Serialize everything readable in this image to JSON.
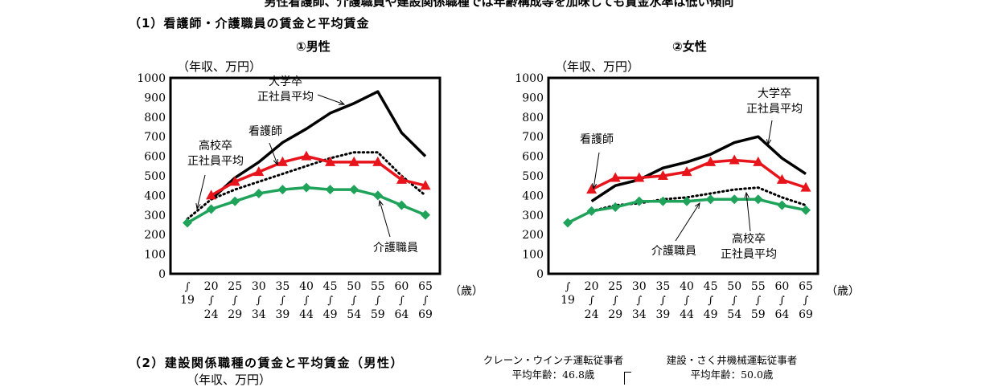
{
  "header": {
    "top_line": "男性看護師、介護職員や建設関係職種では年齢構成等を加味しても賃金水準は低い傾向",
    "section1_title": "（1）看護師・介護職員の賃金と平均賃金",
    "section2_title": "（2）建設関係職種の賃金と平均賃金（男性）",
    "section2_unit": "（年収、万円）"
  },
  "bottom_notes": {
    "crane_title": "クレーン・ウインチ運転従事者",
    "crane_age": "平均年齢：46.8歳",
    "drill_title": "建設・さく井機械運転従事者",
    "drill_age": "平均年齢：50.0歳"
  },
  "chart_data": [
    {
      "type": "line",
      "subtitle": "①男性",
      "ylabel": "（年収、万円）",
      "xunit": "（歳）",
      "ylim": [
        0,
        1000
      ],
      "yticks": [
        "1000",
        "900",
        "800",
        "700",
        "600",
        "500",
        "400",
        "300",
        "200",
        "100",
        "0"
      ],
      "categories": [
        "～19",
        "20～24",
        "25～29",
        "30～34",
        "35～39",
        "40～44",
        "45～49",
        "50～54",
        "55～59",
        "60～64",
        "65～69"
      ],
      "tick_labels": [
        {
          "top": "",
          "mid": "19"
        },
        {
          "top": "20",
          "mid": "24"
        },
        {
          "top": "25",
          "mid": "29"
        },
        {
          "top": "30",
          "mid": "34"
        },
        {
          "top": "35",
          "mid": "39"
        },
        {
          "top": "40",
          "mid": "44"
        },
        {
          "top": "45",
          "mid": "49"
        },
        {
          "top": "50",
          "mid": "54"
        },
        {
          "top": "55",
          "mid": "59"
        },
        {
          "top": "60",
          "mid": "64"
        },
        {
          "top": "65",
          "mid": "69"
        }
      ],
      "series": [
        {
          "name": "大学卒\n正社員平均",
          "color": "#000000",
          "style": "solid",
          "marker": "none",
          "values": [
            null,
            380,
            490,
            570,
            670,
            740,
            820,
            870,
            930,
            720,
            600
          ]
        },
        {
          "name": "高校卒\n正社員平均",
          "color": "#000000",
          "style": "dotted",
          "marker": "none",
          "values": [
            280,
            380,
            430,
            470,
            510,
            550,
            590,
            620,
            620,
            500,
            400
          ]
        },
        {
          "name": "看護師",
          "color": "#e8141b",
          "style": "solid",
          "marker": "triangle",
          "values": [
            null,
            400,
            470,
            520,
            570,
            600,
            570,
            570,
            570,
            480,
            450
          ]
        },
        {
          "name": "介護職員",
          "color": "#1fa25a",
          "style": "solid",
          "marker": "diamond",
          "values": [
            260,
            330,
            370,
            410,
            430,
            440,
            430,
            430,
            400,
            350,
            300
          ]
        }
      ]
    },
    {
      "type": "line",
      "subtitle": "②女性",
      "ylabel": "（年収、万円）",
      "xunit": "（歳）",
      "ylim": [
        0,
        1000
      ],
      "yticks": [
        "1000",
        "900",
        "800",
        "700",
        "600",
        "500",
        "400",
        "300",
        "200",
        "100",
        "0"
      ],
      "categories": [
        "～19",
        "20～24",
        "25～29",
        "30～34",
        "35～39",
        "40～44",
        "45～49",
        "50～54",
        "55～59",
        "60～64",
        "65～69"
      ],
      "tick_labels": [
        {
          "top": "",
          "mid": "19"
        },
        {
          "top": "20",
          "mid": "24"
        },
        {
          "top": "25",
          "mid": "29"
        },
        {
          "top": "30",
          "mid": "34"
        },
        {
          "top": "35",
          "mid": "39"
        },
        {
          "top": "40",
          "mid": "44"
        },
        {
          "top": "45",
          "mid": "49"
        },
        {
          "top": "50",
          "mid": "54"
        },
        {
          "top": "55",
          "mid": "59"
        },
        {
          "top": "60",
          "mid": "64"
        },
        {
          "top": "65",
          "mid": "69"
        }
      ],
      "series": [
        {
          "name": "大学卒\n正社員平均",
          "color": "#000000",
          "style": "solid",
          "marker": "none",
          "values": [
            null,
            370,
            450,
            480,
            540,
            570,
            610,
            670,
            700,
            590,
            510
          ]
        },
        {
          "name": "高校卒\n正社員平均",
          "color": "#000000",
          "style": "dotted",
          "marker": "none",
          "values": [
            260,
            320,
            350,
            360,
            380,
            390,
            410,
            430,
            440,
            390,
            350
          ]
        },
        {
          "name": "看護師",
          "color": "#e8141b",
          "style": "solid",
          "marker": "triangle",
          "values": [
            null,
            430,
            490,
            490,
            500,
            520,
            570,
            580,
            570,
            480,
            440
          ]
        },
        {
          "name": "介護職員",
          "color": "#1fa25a",
          "style": "solid",
          "marker": "diamond",
          "values": [
            260,
            320,
            340,
            370,
            370,
            370,
            380,
            380,
            380,
            350,
            325
          ]
        }
      ]
    }
  ]
}
